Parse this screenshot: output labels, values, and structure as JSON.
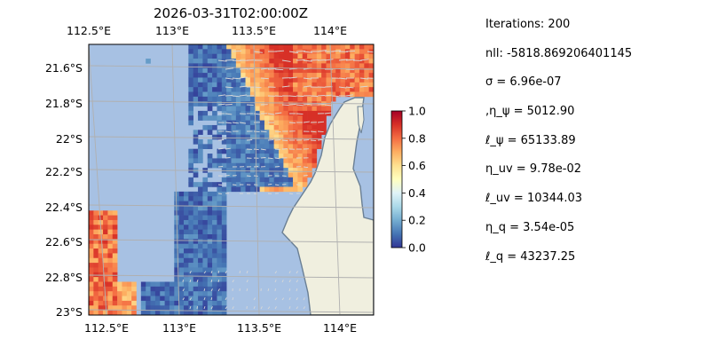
{
  "chart_data": {
    "type": "heatmap",
    "title": "2026-03-31T02:00:00Z",
    "x_ticks": [
      "112.5°E",
      "113°E",
      "113.5°E",
      "114°E"
    ],
    "y_ticks": [
      "21.6°S",
      "21.8°S",
      "22°S",
      "22.2°S",
      "22.4°S",
      "22.6°S",
      "22.8°S",
      "23°S"
    ],
    "lon_range": [
      112.5,
      114.2
    ],
    "lat_range": [
      -23.0,
      -21.45
    ],
    "grid": true,
    "colorbar": {
      "range": [
        0.0,
        1.0
      ],
      "ticks": [
        "0.0",
        "0.2",
        "0.4",
        "0.6",
        "0.8",
        "1.0"
      ],
      "colormap": "RdYlBu_r"
    },
    "colors": {
      "ocean": "#a7c1e3",
      "land": "#f0efdf",
      "coast": "#6a7f94",
      "grid": "#b0b0b0",
      "arrows": "#d8d8d8"
    }
  },
  "stats": [
    "Iterations: 200",
    "nll: -5818.869206401145",
    "σ = 6.96e-07",
    ",η_ψ = 5012.90",
    "ℓ_ψ = 65133.89",
    "η_uv = 9.78e-02",
    "ℓ_uv = 10344.03",
    "η_q = 3.54e-05",
    "ℓ_q = 43237.25"
  ]
}
